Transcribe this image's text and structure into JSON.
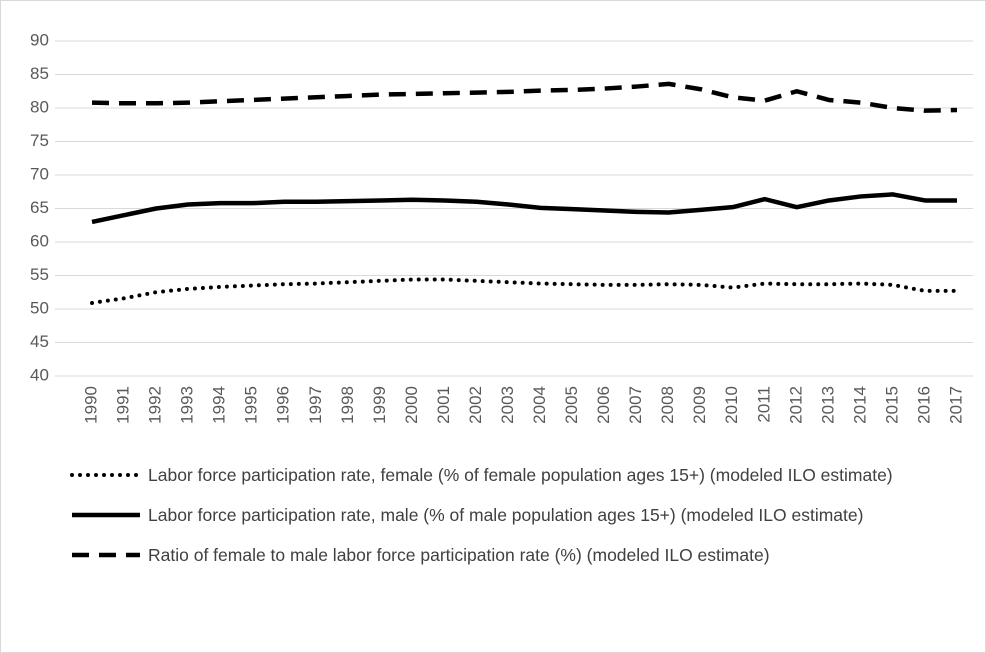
{
  "chart_data": {
    "type": "line",
    "categories": [
      "1990",
      "1991",
      "1992",
      "1993",
      "1994",
      "1995",
      "1996",
      "1997",
      "1998",
      "1999",
      "2000",
      "2001",
      "2002",
      "2003",
      "2004",
      "2005",
      "2006",
      "2007",
      "2008",
      "2009",
      "2010",
      "2011",
      "2012",
      "2013",
      "2014",
      "2015",
      "2016",
      "2017"
    ],
    "series": [
      {
        "name": "Labor force participation rate, female (% of female population ages 15+) (modeled ILO estimate)",
        "color": "#000000",
        "linestyle": "dotted",
        "values": [
          50.9,
          51.6,
          52.5,
          53.0,
          53.3,
          53.5,
          53.7,
          53.8,
          54.0,
          54.2,
          54.4,
          54.4,
          54.2,
          54.0,
          53.8,
          53.7,
          53.6,
          53.6,
          53.7,
          53.6,
          53.2,
          53.8,
          53.7,
          53.7,
          53.8,
          53.6,
          52.7,
          52.7
        ]
      },
      {
        "name": "Labor force participation rate, male (% of male population ages 15+) (modeled ILO estimate)",
        "color": "#000000",
        "linestyle": "solid",
        "values": [
          63.0,
          64.0,
          65.0,
          65.6,
          65.8,
          65.8,
          66.0,
          66.0,
          66.1,
          66.2,
          66.3,
          66.2,
          66.0,
          65.6,
          65.1,
          64.9,
          64.7,
          64.5,
          64.4,
          64.8,
          65.2,
          66.4,
          65.2,
          66.2,
          66.8,
          67.1,
          66.2,
          66.2
        ]
      },
      {
        "name": "Ratio of female to male labor force participation rate (%) (modeled ILO estimate)",
        "color": "#000000",
        "linestyle": "dashed",
        "values": [
          80.8,
          80.7,
          80.7,
          80.8,
          81.0,
          81.2,
          81.4,
          81.6,
          81.8,
          82.0,
          82.1,
          82.2,
          82.3,
          82.4,
          82.6,
          82.7,
          82.9,
          83.2,
          83.6,
          82.8,
          81.6,
          81.1,
          82.5,
          81.2,
          80.8,
          80.0,
          79.6,
          79.7
        ]
      }
    ],
    "ylim": [
      40,
      90
    ],
    "yticks": [
      40,
      45,
      50,
      55,
      60,
      65,
      70,
      75,
      80,
      85,
      90
    ],
    "grid": true,
    "legend": "bottom"
  }
}
